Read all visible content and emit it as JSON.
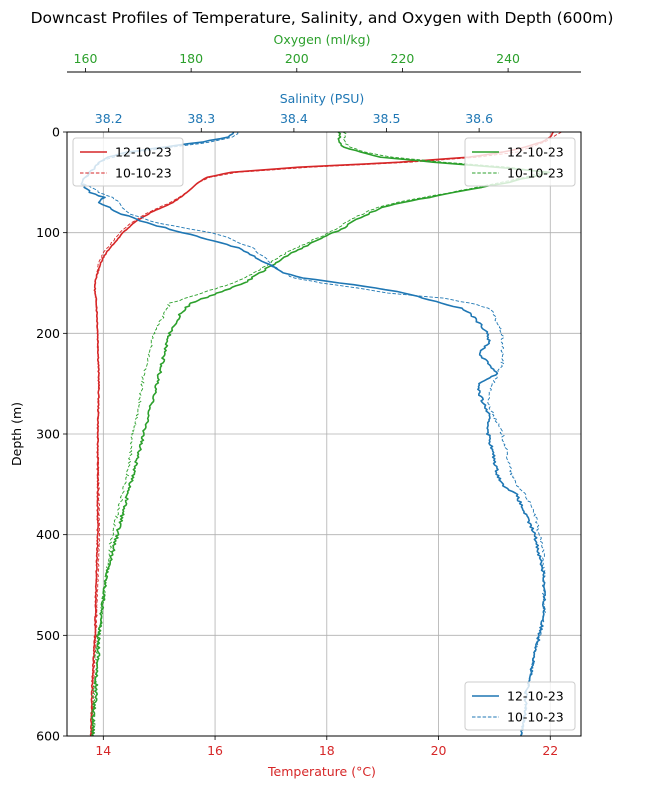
{
  "chart_data": {
    "type": "line",
    "title": "Downcast Profiles of Temperature, Salinity, and Oxygen with Depth (600m)",
    "ylabel": "Depth (m)",
    "ylim": [
      600,
      0
    ],
    "yticks": [
      "0",
      "100",
      "200",
      "300",
      "400",
      "500",
      "600"
    ],
    "grid": true,
    "colors": {
      "temperature": "#d62728",
      "salinity": "#1f77b4",
      "oxygen": "#2ca02c"
    },
    "axes": {
      "temperature": {
        "label": "Temperature (°C)",
        "position": "bottom",
        "range": [
          13.35,
          22.55
        ],
        "ticks": [
          "14",
          "16",
          "18",
          "20",
          "22"
        ]
      },
      "salinity": {
        "label": "Salinity (PSU)",
        "position": "top",
        "range": [
          38.155,
          38.71
        ],
        "ticks": [
          "38.2",
          "38.3",
          "38.4",
          "38.5",
          "38.6"
        ]
      },
      "oxygen": {
        "label": "Oxygen (ml/kg)",
        "position": "top-offset",
        "range": [
          156.5,
          253.8
        ],
        "ticks": [
          "160",
          "180",
          "200",
          "220",
          "240"
        ]
      }
    },
    "legends": [
      {
        "placement": "upper-left",
        "axis": "temperature",
        "entries": [
          "12-10-23",
          "10-10-23"
        ]
      },
      {
        "placement": "upper-right",
        "axis": "oxygen",
        "entries": [
          "12-10-23",
          "10-10-23"
        ]
      },
      {
        "placement": "lower-right",
        "axis": "salinity",
        "entries": [
          "12-10-23",
          "10-10-23"
        ]
      }
    ],
    "series": [
      {
        "name": "12-10-23",
        "axis": "temperature",
        "style": "solid",
        "depth": [
          0,
          5,
          10,
          15,
          20,
          25,
          30,
          35,
          40,
          45,
          50,
          60,
          70,
          80,
          90,
          100,
          110,
          120,
          130,
          140,
          150,
          160,
          170,
          200,
          250,
          300,
          350,
          400,
          450,
          500,
          550,
          600
        ],
        "values": [
          22.05,
          22.0,
          21.85,
          21.55,
          21.15,
          20.55,
          19.3,
          17.5,
          16.3,
          15.85,
          15.7,
          15.5,
          15.25,
          14.85,
          14.55,
          14.35,
          14.2,
          14.05,
          13.95,
          13.9,
          13.85,
          13.85,
          13.88,
          13.9,
          13.92,
          13.9,
          13.9,
          13.9,
          13.87,
          13.85,
          13.8,
          13.78
        ]
      },
      {
        "name": "10-10-23",
        "axis": "temperature",
        "style": "dashed",
        "depth": [
          0,
          10,
          20,
          25,
          30,
          35,
          40,
          45,
          50,
          60,
          70,
          80,
          90,
          100,
          110,
          120,
          130,
          140,
          150,
          160,
          170,
          200,
          250,
          300,
          350,
          400,
          450,
          500,
          550,
          600
        ],
        "values": [
          22.2,
          21.9,
          21.4,
          20.7,
          19.5,
          17.7,
          16.4,
          15.9,
          15.7,
          15.5,
          15.2,
          14.8,
          14.5,
          14.3,
          14.15,
          14.0,
          13.92,
          13.88,
          13.85,
          13.85,
          13.87,
          13.9,
          13.92,
          13.9,
          13.92,
          13.93,
          13.9,
          13.87,
          13.82,
          13.8
        ]
      },
      {
        "name": "12-10-23",
        "axis": "salinity",
        "style": "solid",
        "depth": [
          0,
          5,
          10,
          15,
          20,
          25,
          30,
          35,
          40,
          45,
          50,
          55,
          60,
          65,
          70,
          75,
          80,
          85,
          90,
          95,
          100,
          105,
          110,
          115,
          120,
          125,
          130,
          135,
          140,
          145,
          150,
          155,
          160,
          165,
          170,
          175,
          180,
          190,
          200,
          210,
          220,
          230,
          240,
          250,
          260,
          270,
          280,
          290,
          300,
          320,
          340,
          350,
          360,
          380,
          400,
          420,
          440,
          460,
          480,
          500,
          520,
          540,
          560,
          580,
          600
        ],
        "values": [
          38.335,
          38.33,
          38.3,
          38.26,
          38.22,
          38.2,
          38.19,
          38.185,
          38.18,
          38.175,
          38.17,
          38.175,
          38.18,
          38.195,
          38.19,
          38.2,
          38.21,
          38.225,
          38.24,
          38.26,
          38.28,
          38.3,
          38.32,
          38.34,
          38.35,
          38.36,
          38.37,
          38.38,
          38.39,
          38.41,
          38.45,
          38.49,
          38.52,
          38.54,
          38.56,
          38.58,
          38.59,
          38.6,
          38.61,
          38.61,
          38.6,
          38.61,
          38.62,
          38.6,
          38.6,
          38.605,
          38.61,
          38.61,
          38.61,
          38.615,
          38.62,
          38.625,
          38.64,
          38.65,
          38.66,
          38.665,
          38.67,
          38.67,
          38.67,
          38.665,
          38.66,
          38.655,
          38.65,
          38.65,
          38.645
        ]
      },
      {
        "name": "10-10-23",
        "axis": "salinity",
        "style": "dashed",
        "depth": [
          0,
          5,
          10,
          15,
          20,
          25,
          30,
          35,
          40,
          45,
          50,
          55,
          60,
          65,
          70,
          75,
          80,
          85,
          90,
          95,
          100,
          105,
          110,
          115,
          120,
          125,
          130,
          135,
          140,
          145,
          150,
          155,
          160,
          165,
          170,
          175,
          180,
          190,
          200,
          210,
          220,
          230,
          240,
          250,
          260,
          270,
          280,
          290,
          300,
          320,
          340,
          350,
          360,
          380,
          400,
          420,
          440,
          460,
          480,
          500,
          520,
          540,
          560,
          580,
          600
        ],
        "values": [
          38.34,
          38.335,
          38.31,
          38.27,
          38.23,
          38.205,
          38.19,
          38.185,
          38.18,
          38.175,
          38.17,
          38.18,
          38.19,
          38.205,
          38.21,
          38.215,
          38.22,
          38.235,
          38.25,
          38.28,
          38.31,
          38.33,
          38.34,
          38.355,
          38.36,
          38.37,
          38.375,
          38.38,
          38.39,
          38.4,
          38.43,
          38.47,
          38.5,
          38.56,
          38.59,
          38.61,
          38.615,
          38.62,
          38.625,
          38.625,
          38.625,
          38.625,
          38.62,
          38.615,
          38.61,
          38.61,
          38.615,
          38.62,
          38.625,
          38.63,
          38.635,
          38.64,
          38.65,
          38.66,
          38.665,
          38.67,
          38.67,
          38.67,
          38.67,
          38.665,
          38.66,
          38.655,
          38.65,
          38.65,
          38.645
        ]
      },
      {
        "name": "12-10-23",
        "axis": "oxygen",
        "style": "solid",
        "depth": [
          0,
          5,
          10,
          15,
          20,
          25,
          30,
          35,
          40,
          45,
          50,
          55,
          60,
          65,
          70,
          75,
          80,
          85,
          90,
          95,
          100,
          110,
          120,
          130,
          140,
          150,
          160,
          170,
          180,
          190,
          200,
          220,
          240,
          260,
          280,
          300,
          320,
          340,
          360,
          380,
          400,
          420,
          440,
          460,
          480,
          500,
          520,
          540,
          560,
          580,
          600
        ],
        "values": [
          208,
          208,
          208,
          209,
          212,
          216,
          226,
          238,
          248,
          244,
          240,
          235,
          230,
          225,
          220,
          216,
          214,
          212,
          210,
          209,
          207,
          203,
          199,
          196,
          193,
          190,
          185,
          180,
          178,
          177,
          176,
          175,
          174,
          173,
          172,
          171,
          170,
          169,
          168,
          167,
          166,
          165,
          164,
          163.5,
          163,
          162.5,
          162.5,
          162,
          162,
          161.5,
          161.5
        ]
      },
      {
        "name": "10-10-23",
        "axis": "oxygen",
        "style": "dashed",
        "depth": [
          0,
          5,
          10,
          15,
          20,
          25,
          30,
          35,
          40,
          45,
          50,
          55,
          60,
          65,
          70,
          75,
          80,
          85,
          90,
          95,
          100,
          110,
          120,
          130,
          140,
          150,
          160,
          170,
          180,
          190,
          200,
          220,
          240,
          260,
          280,
          300,
          320,
          340,
          360,
          380,
          400,
          420,
          440,
          460,
          480,
          500,
          520,
          540,
          560,
          580,
          600
        ],
        "values": [
          209,
          209,
          209,
          210,
          213,
          218,
          228,
          240,
          247,
          243,
          239,
          234,
          229,
          224,
          219,
          215,
          213,
          211,
          209,
          208,
          206,
          202,
          198,
          195,
          192,
          188,
          182,
          176,
          175,
          174,
          173,
          172,
          171,
          170.5,
          170,
          169,
          168.5,
          168,
          167,
          166,
          165,
          164.5,
          164,
          163.5,
          163,
          162.5,
          162,
          162,
          161.5,
          161.5,
          161.5
        ]
      }
    ]
  }
}
